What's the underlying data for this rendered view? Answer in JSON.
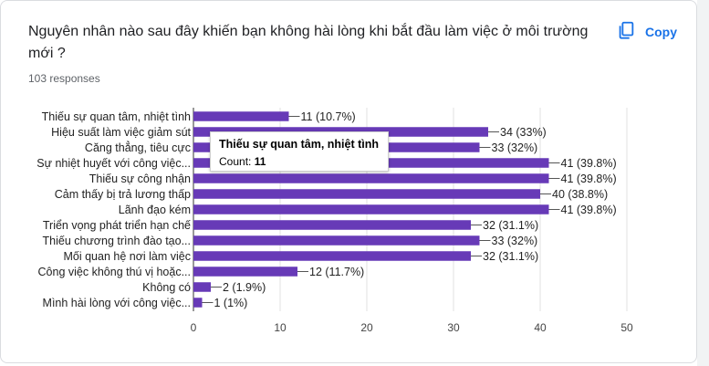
{
  "question": "Nguyên nhân nào sau đây khiến bạn không hài lòng khi bắt đầu làm việc ở môi trường mới ?",
  "responses": "103 responses",
  "copy_label": "Copy",
  "colors": {
    "bar": "#673ab7",
    "accent": "#1a73e8",
    "grid": "#e0e0e0"
  },
  "tooltip": {
    "title": "Thiếu sự quan tâm, nhiệt tình",
    "count_label": "Count:",
    "count_value": "11"
  },
  "chart_data": {
    "type": "bar",
    "orientation": "horizontal",
    "categories": [
      "Thiếu sự quan tâm, nhiệt tình",
      "Hiệu suất làm việc giảm sút",
      "Căng thẳng, tiêu cực",
      "Sự nhiệt huyết với công việc...",
      "Thiếu sự công nhận",
      "Cảm thấy bị trả lương thấp",
      "Lãnh đạo kém",
      "Triển vọng phát triển hạn chế",
      "Thiếu chương trình đào tạo...",
      "Mối quan hệ nơi làm việc",
      "Công việc không thú vị hoặc...",
      "Không có",
      "Mình hài lòng với công việc..."
    ],
    "values": [
      11,
      34,
      33,
      41,
      41,
      40,
      41,
      32,
      33,
      32,
      12,
      2,
      1
    ],
    "value_labels": [
      "11 (10.7%)",
      "34 (33%)",
      "33 (32%)",
      "41 (39.8%)",
      "41 (39.8%)",
      "40 (38.8%)",
      "41 (39.8%)",
      "32 (31.1%)",
      "33 (32%)",
      "32 (31.1%)",
      "12 (11.7%)",
      "2 (1.9%)",
      "1 (1%)"
    ],
    "xticks": [
      0,
      10,
      20,
      30,
      40,
      50
    ],
    "xlim": [
      0,
      50
    ],
    "grid": true
  }
}
